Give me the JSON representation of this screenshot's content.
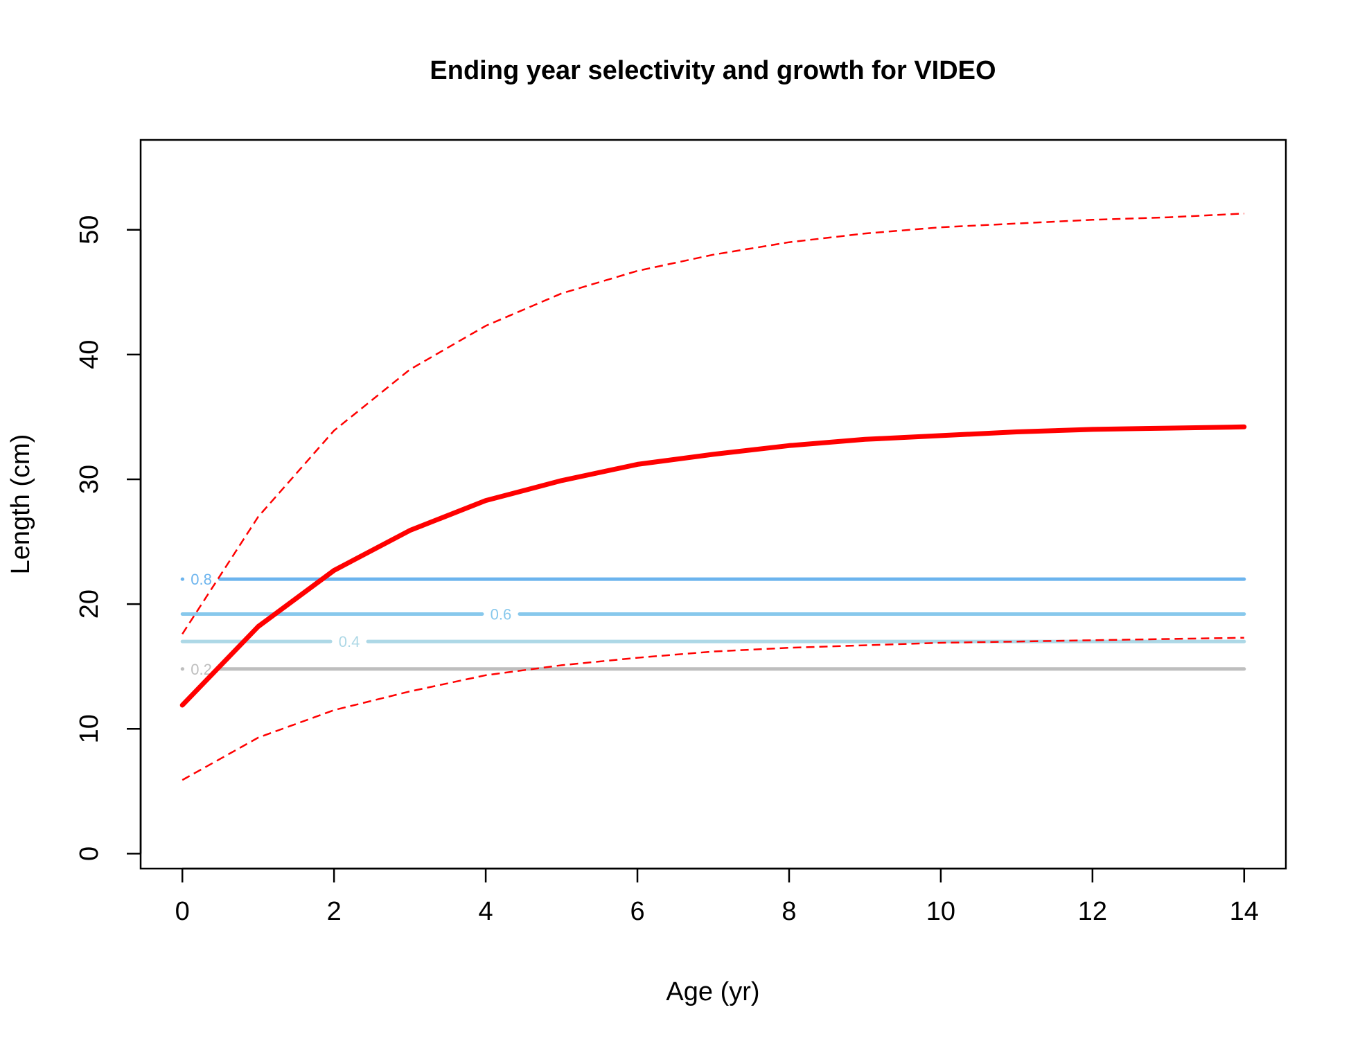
{
  "chart_data": {
    "type": "line",
    "title": "Ending year selectivity and growth for VIDEO",
    "xlabel": "Age (yr)",
    "ylabel": "Length (cm)",
    "xlim": [
      -0.55,
      14.55
    ],
    "ylim": [
      -1.2,
      57.2
    ],
    "xticks": [
      0,
      2,
      4,
      6,
      8,
      10,
      12,
      14
    ],
    "yticks": [
      0,
      10,
      20,
      30,
      40,
      50
    ],
    "grid": false,
    "series": [
      {
        "role": "mean",
        "style": "solid-thick",
        "color": "#FF0000",
        "x": [
          0,
          1,
          2,
          3,
          4,
          5,
          6,
          7,
          8,
          9,
          10,
          11,
          12,
          13,
          14
        ],
        "y": [
          11.9,
          18.2,
          22.7,
          25.9,
          28.3,
          29.9,
          31.2,
          32.0,
          32.7,
          33.2,
          33.5,
          33.8,
          34.0,
          34.1,
          34.2
        ]
      },
      {
        "role": "upper",
        "style": "dashed",
        "color": "#FF0000",
        "x": [
          0,
          1,
          2,
          3,
          4,
          5,
          6,
          7,
          8,
          9,
          10,
          11,
          12,
          13,
          14
        ],
        "y": [
          17.6,
          27.0,
          33.9,
          38.8,
          42.3,
          44.9,
          46.7,
          48.0,
          49.0,
          49.7,
          50.2,
          50.5,
          50.8,
          51.0,
          51.3
        ]
      },
      {
        "role": "lower",
        "style": "dashed",
        "color": "#FF0000",
        "x": [
          0,
          1,
          2,
          3,
          4,
          5,
          6,
          7,
          8,
          9,
          10,
          11,
          12,
          13,
          14
        ],
        "y": [
          5.9,
          9.3,
          11.5,
          13.0,
          14.3,
          15.1,
          15.7,
          16.2,
          16.5,
          16.7,
          16.9,
          17.0,
          17.1,
          17.2,
          17.3
        ]
      }
    ],
    "contours": [
      {
        "level": "0.8",
        "length": 22.0,
        "color": "#6CB4EE",
        "label_age": 0.25
      },
      {
        "level": "0.6",
        "length": 19.2,
        "color": "#87C8EC",
        "label_age": 4.2
      },
      {
        "level": "0.4",
        "length": 17.0,
        "color": "#ADD8E6",
        "label_age": 2.2
      },
      {
        "level": "0.2",
        "length": 14.8,
        "color": "#BEBEBE",
        "label_age": 0.25
      }
    ]
  }
}
